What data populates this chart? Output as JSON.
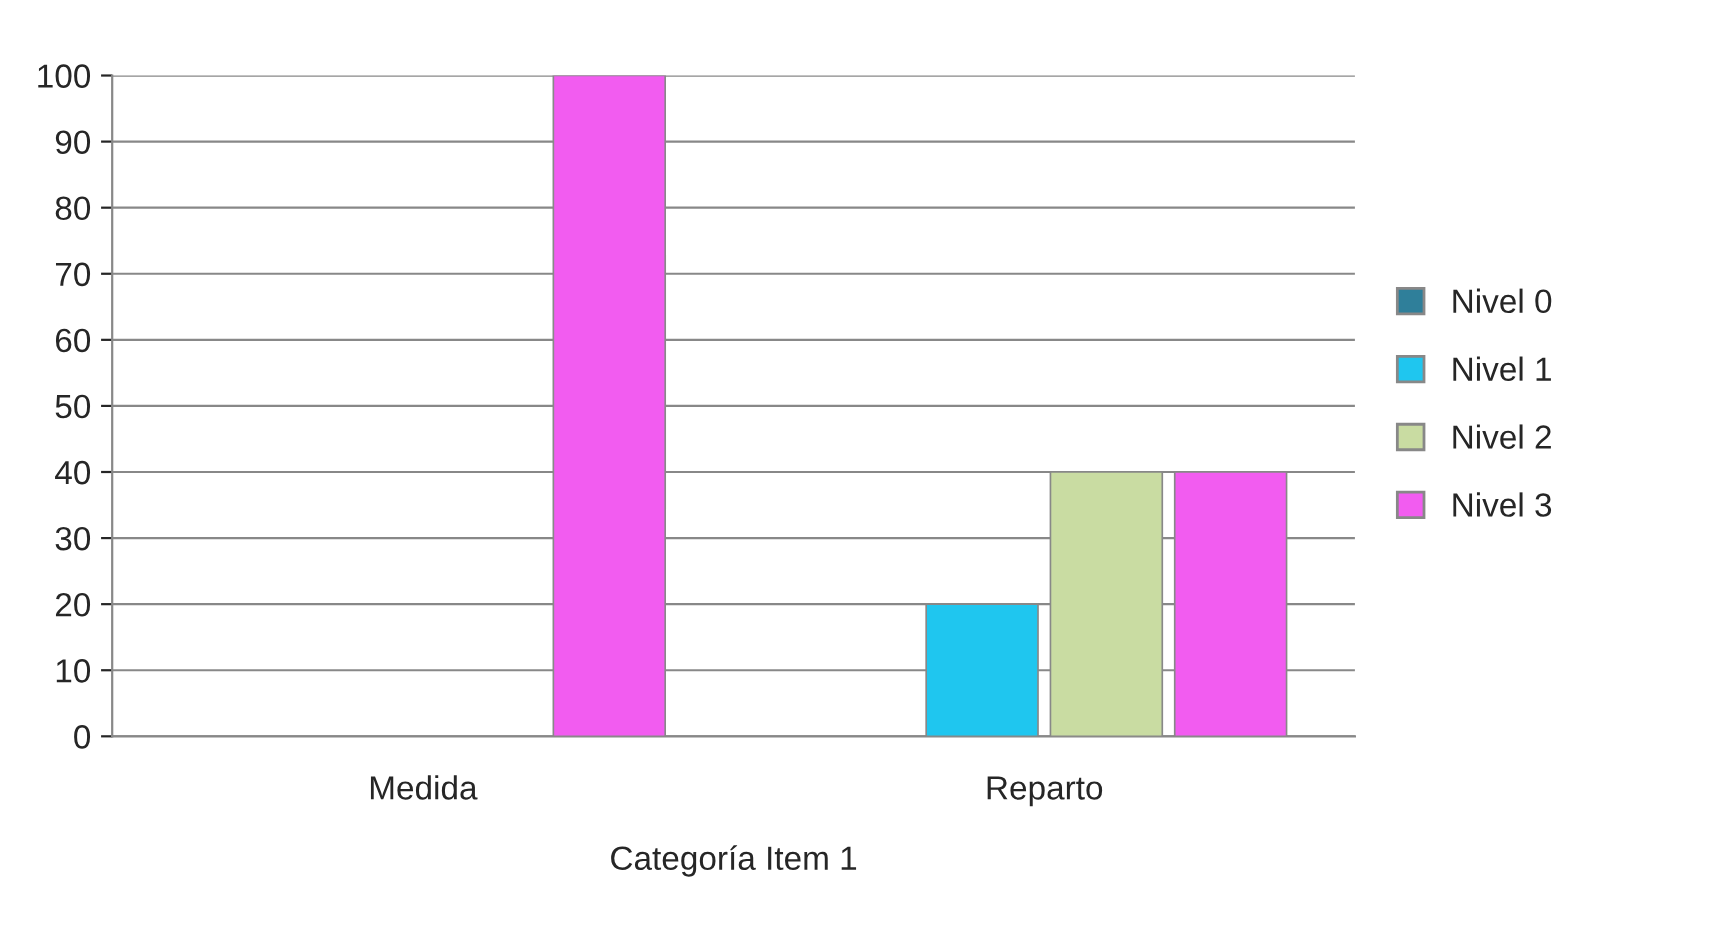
{
  "chart_data": {
    "type": "bar",
    "categories": [
      "Medida",
      "Reparto"
    ],
    "xlabel": "Categoría Item 1",
    "series": [
      {
        "name": "Nivel 0",
        "color": "#2f7f9a",
        "values": [
          null,
          null
        ]
      },
      {
        "name": "Nivel 1",
        "color": "#1fc6ef",
        "values": [
          null,
          20
        ]
      },
      {
        "name": "Nivel 2",
        "color": "#c9dca2",
        "values": [
          null,
          40
        ]
      },
      {
        "name": "Nivel 3",
        "color": "#f25cf0",
        "values": [
          100,
          40
        ]
      }
    ],
    "ylim": [
      0,
      100
    ],
    "yticks": [
      0,
      10,
      20,
      30,
      40,
      50,
      60,
      70,
      80,
      90,
      100
    ],
    "grid": "y",
    "legend": "right"
  }
}
